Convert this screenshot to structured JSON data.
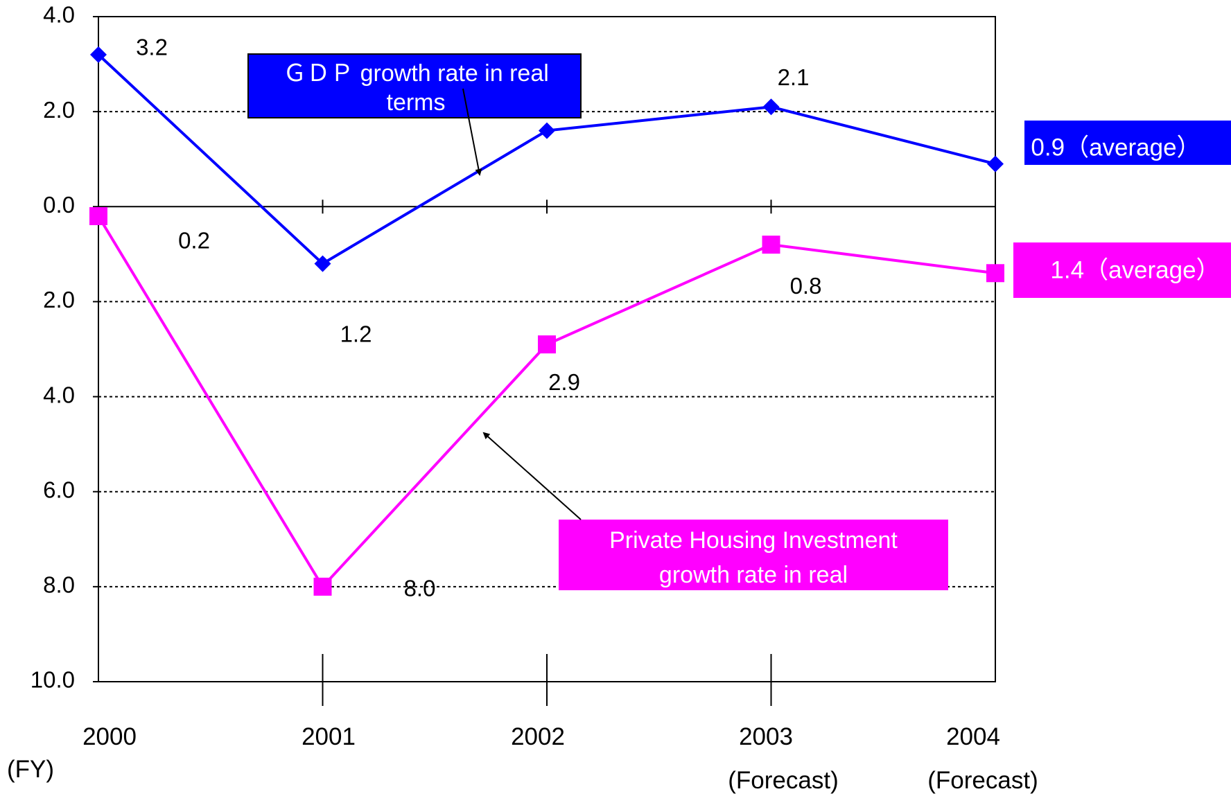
{
  "chart_data": {
    "type": "line",
    "x_unit_label": "(FY)",
    "categories": [
      {
        "year": "2000",
        "note": ""
      },
      {
        "year": "2001",
        "note": ""
      },
      {
        "year": "2002",
        "note": ""
      },
      {
        "year": "2003",
        "note": "(Forecast)"
      },
      {
        "year": "2004",
        "note": "(Forecast)"
      }
    ],
    "y_axis": {
      "min": -10,
      "max": 4,
      "ticks": [
        4,
        2,
        0,
        -2,
        -4,
        -6,
        -8,
        -10
      ],
      "tick_labels": [
        "4.0",
        "2.0",
        "0.0",
        "2.0",
        "4.0",
        "6.0",
        "8.0",
        "10.0"
      ],
      "gridlines": "dotted"
    },
    "series": [
      {
        "name": "GDP growth rate in real terms",
        "label_lines": [
          "ＧＤＰ growth rate in real",
          "terms"
        ],
        "color": "#0000ff",
        "marker": "diamond",
        "values": [
          3.2,
          -1.2,
          1.6,
          2.1,
          0.9
        ],
        "data_labels": [
          "3.2",
          "1.2",
          "",
          "2.1",
          ""
        ],
        "average_label": "0.9（average）"
      },
      {
        "name": "Private Housing Investment growth rate in real",
        "label_lines": [
          "Private Housing Investment",
          "growth rate in real"
        ],
        "color": "#ff00ff",
        "marker": "square",
        "values": [
          -0.2,
          -8.0,
          -2.9,
          -0.8,
          -1.4
        ],
        "data_labels": [
          "0.2",
          "8.0",
          "2.9",
          "0.8",
          ""
        ],
        "average_label": "1.4（average）"
      }
    ]
  }
}
